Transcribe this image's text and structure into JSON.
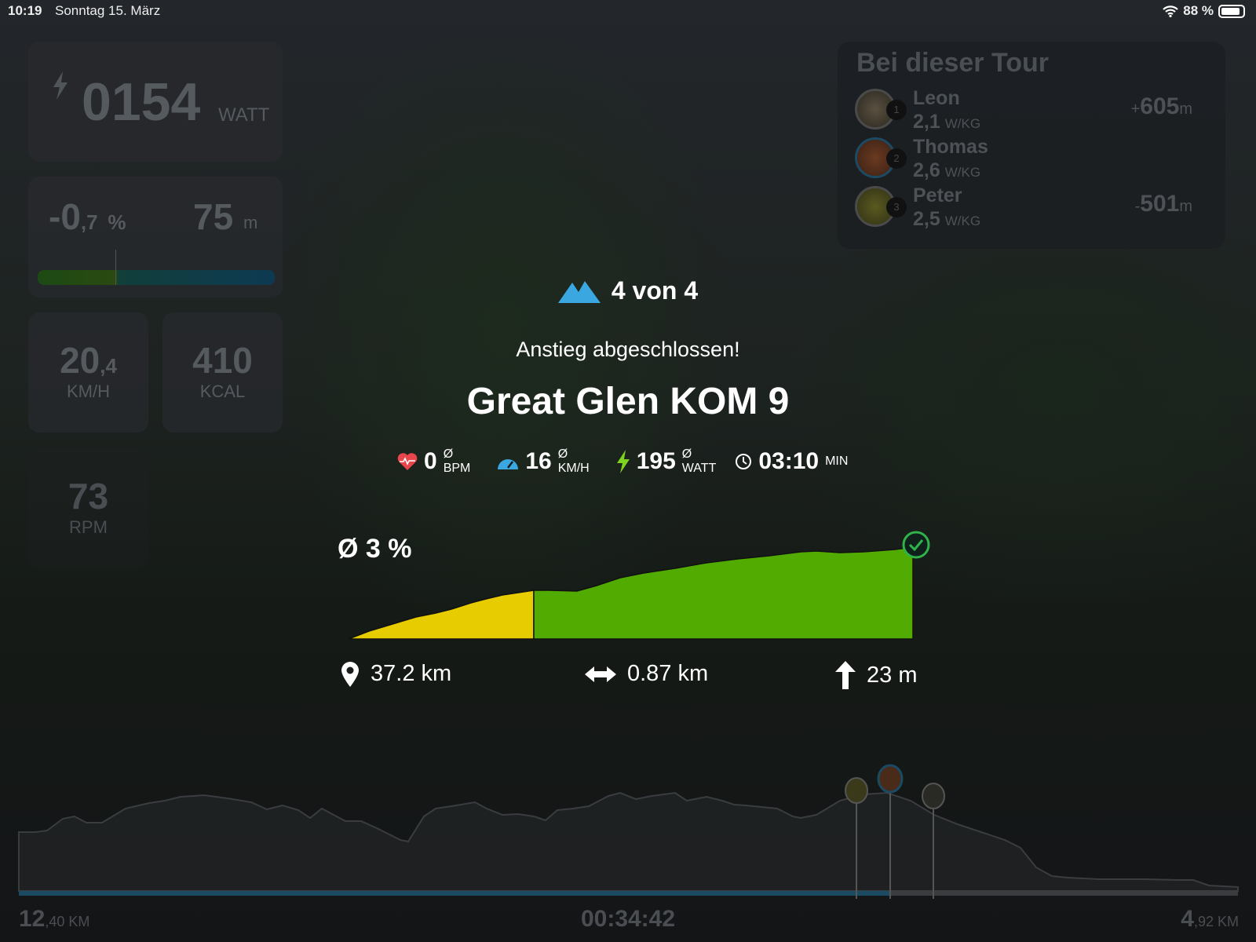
{
  "status_bar": {
    "time": "10:19",
    "date": "Sonntag 15. März",
    "battery": "88 %",
    "battery_level": 88
  },
  "metrics": {
    "power": {
      "value": "0154",
      "unit": "WATT"
    },
    "grade": {
      "value": "-0",
      "decimal": ",7",
      "unit": "%",
      "distance": "75",
      "distance_unit": "m",
      "bar_position": 0.27
    },
    "speed": {
      "value": "20",
      "decimal": ",4",
      "unit": "KM/H"
    },
    "calories": {
      "value": "410",
      "unit": "KCAL"
    },
    "cadence": {
      "value": "73",
      "unit": "RPM"
    }
  },
  "tour_panel": {
    "title": "Bei dieser Tour",
    "riders": [
      {
        "rank": "1",
        "name": "Leon",
        "wkg": "2,1",
        "wkg_unit": "W/KG",
        "gap": "605",
        "gap_sign": "+",
        "gap_unit": "m"
      },
      {
        "rank": "2",
        "name": "Thomas",
        "wkg": "2,6",
        "wkg_unit": "W/KG",
        "gap": "",
        "gap_sign": "",
        "gap_unit": ""
      },
      {
        "rank": "3",
        "name": "Peter",
        "wkg": "2,5",
        "wkg_unit": "W/KG",
        "gap": "501",
        "gap_sign": "-",
        "gap_unit": "m"
      }
    ]
  },
  "climb": {
    "counter": "4 von 4",
    "message": "Anstieg abgeschlossen!",
    "name": "Great Glen KOM 9",
    "stats": [
      {
        "icon": "heart-icon",
        "value": "0",
        "avg": "Ø",
        "unit": "BPM",
        "color": "#e8454c"
      },
      {
        "icon": "speedometer-icon",
        "value": "16",
        "avg": "Ø",
        "unit": "KM/H",
        "color": "#3aa7e0"
      },
      {
        "icon": "lightning-icon",
        "value": "195",
        "avg": "Ø",
        "unit": "WATT",
        "color": "#7ed321"
      },
      {
        "icon": "clock-icon",
        "value": "03:10",
        "avg": "",
        "unit": "MIN",
        "color": "#ffffff"
      }
    ],
    "avg_grade": "Ø 3 %",
    "position": "37.2 km",
    "length": "0.87 km",
    "elevation": "23 m",
    "colors": {
      "yellow": "#e6cc00",
      "green": "#52ab00",
      "check": "#2fb34a"
    }
  },
  "route": {
    "distance_done": "12",
    "distance_done_decimal": ",40 KM",
    "elapsed": "00:34:42",
    "distance_left": "4",
    "distance_left_decimal": ",92 KM",
    "progress": 0.715,
    "accent": "#1b4a63"
  }
}
